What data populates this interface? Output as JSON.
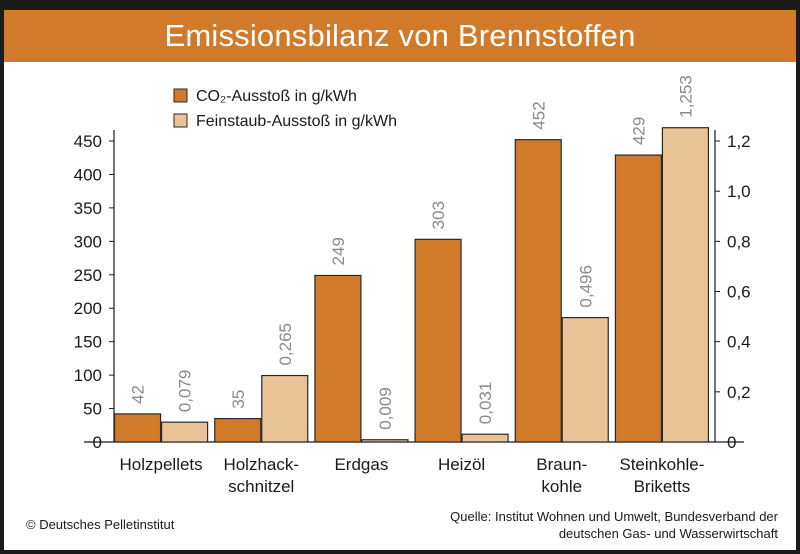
{
  "title": "Emissionsbilanz von Brennstoffen",
  "colors": {
    "title_bar": "#d07a2a",
    "co2": "#d07a2a",
    "fine_dust": "#eac397",
    "bar_stroke": "#2a2a2a",
    "value_label": "#8a8a8a"
  },
  "chart_data": {
    "type": "bar",
    "categories": [
      [
        "Holzpellets"
      ],
      [
        "Holzhack-",
        "schnitzel"
      ],
      [
        "Erdgas"
      ],
      [
        "Heizöl"
      ],
      [
        "Braun-",
        "kohle"
      ],
      [
        "Steinkohle-",
        "Briketts"
      ]
    ],
    "series": [
      {
        "name": "CO₂-Ausstoß in g/kWh",
        "axis": "left",
        "values": [
          42,
          35,
          249,
          303,
          452,
          429
        ],
        "labels": [
          "42",
          "35",
          "249",
          "303",
          "452",
          "429"
        ]
      },
      {
        "name": "Feinstaub-Ausstoß in g/kWh",
        "axis": "right",
        "values": [
          0.079,
          0.265,
          0.009,
          0.031,
          0.496,
          1.253
        ],
        "labels": [
          "0,079",
          "0,265",
          "0,009",
          "0,031",
          "0,496",
          "1,253"
        ]
      }
    ],
    "left_axis": {
      "ylim": [
        0,
        450
      ],
      "ticks": [
        0,
        50,
        100,
        150,
        200,
        250,
        300,
        350,
        400,
        450
      ],
      "tick_labels": [
        "0",
        "50",
        "100",
        "150",
        "200",
        "250",
        "300",
        "350",
        "400",
        "450"
      ]
    },
    "right_axis": {
      "ylim": [
        0,
        1.2
      ],
      "ticks": [
        0,
        0.2,
        0.4,
        0.6,
        0.8,
        1.0,
        1.2
      ],
      "tick_labels": [
        "0",
        "0,2",
        "0,4",
        "0,6",
        "0,8",
        "1,0",
        "1,2"
      ]
    },
    "grid": false,
    "legend_position": "top-left"
  },
  "footer": {
    "copyright": "© Deutsches Pelletinstitut",
    "source_line1": "Quelle: Institut Wohnen und Umwelt, Bundesverband der",
    "source_line2": "deutschen Gas-  und Wasserwirtschaft"
  }
}
